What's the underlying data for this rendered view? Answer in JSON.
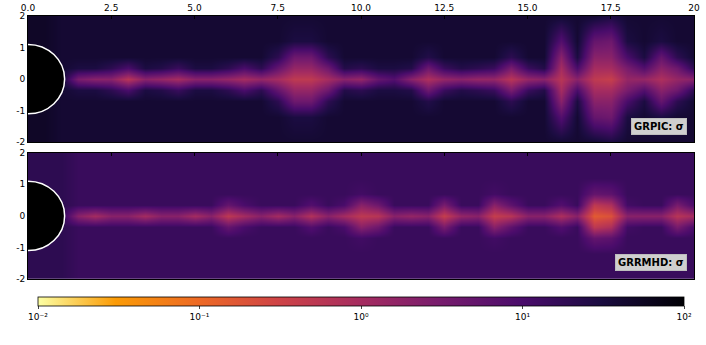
{
  "chart_data": [
    {
      "type": "heatmap",
      "label": "GRPIC: σ",
      "horizon_radius": 1.1,
      "xlim": [
        0,
        20
      ],
      "ylim": [
        -2,
        2
      ],
      "xticks": [
        {
          "value": 0,
          "label": "0.0"
        },
        2.5,
        {
          "value": 5,
          "label": "5.0"
        },
        7.5,
        {
          "value": 10,
          "label": "10.0"
        },
        12.5,
        {
          "value": 15,
          "label": "15.0"
        },
        17.5,
        20
      ],
      "yticks": [
        -2,
        -1,
        0,
        1,
        2
      ],
      "log": true,
      "x": [
        0,
        0.5,
        1,
        1.5,
        2,
        2.5,
        3,
        3.5,
        4,
        4.5,
        5,
        5.5,
        6,
        6.5,
        7,
        7.5,
        8,
        8.5,
        9,
        9.5,
        10,
        10.5,
        11,
        11.5,
        12,
        12.5,
        13,
        13.5,
        14,
        14.5,
        15,
        15.5,
        16,
        16.5,
        17,
        17.5,
        18,
        18.5,
        19,
        19.5,
        20
      ],
      "y": [
        -2,
        -1.2,
        -0.7,
        -0.35,
        0,
        0.35,
        0.7,
        1.2,
        2
      ],
      "cells": [
        [
          50,
          50,
          40,
          40,
          40,
          40,
          40,
          40,
          40,
          40,
          40,
          40,
          40,
          40,
          40,
          40,
          40,
          40,
          40,
          40,
          40,
          40,
          40,
          40,
          40,
          40,
          40,
          40,
          40,
          40,
          40,
          40,
          40,
          40,
          40,
          30,
          40,
          40,
          40,
          40,
          40
        ],
        [
          50,
          50,
          40,
          40,
          40,
          40,
          40,
          40,
          40,
          40,
          40,
          40,
          40,
          40,
          40,
          40,
          30,
          30,
          40,
          40,
          40,
          40,
          40,
          40,
          40,
          40,
          40,
          40,
          40,
          40,
          40,
          40,
          8,
          40,
          5,
          4,
          30,
          40,
          30,
          40,
          40
        ],
        [
          50,
          50,
          40,
          40,
          40,
          40,
          40,
          40,
          40,
          40,
          40,
          40,
          40,
          40,
          40,
          20,
          4,
          4,
          20,
          40,
          40,
          40,
          40,
          40,
          25,
          40,
          40,
          40,
          40,
          20,
          40,
          40,
          2,
          30,
          2,
          2,
          10,
          30,
          5,
          20,
          40
        ],
        [
          50,
          50,
          40,
          30,
          30,
          20,
          10,
          30,
          25,
          15,
          30,
          30,
          20,
          10,
          20,
          5,
          1.5,
          1.5,
          4,
          25,
          20,
          30,
          30,
          25,
          4,
          15,
          25,
          20,
          15,
          3,
          15,
          25,
          1,
          10,
          1,
          1,
          3,
          8,
          2,
          4,
          20
        ],
        [
          50,
          50,
          40,
          3,
          2,
          2,
          0.6,
          2,
          1.5,
          1,
          2,
          2,
          1.5,
          1,
          1.5,
          1,
          0.5,
          0.5,
          1,
          2,
          1.5,
          5,
          8,
          2,
          0.8,
          1.5,
          2,
          1.5,
          1.5,
          0.6,
          1.5,
          2,
          0.6,
          2,
          0.5,
          0.4,
          1.5,
          1.5,
          0.8,
          1.5,
          2
        ],
        [
          50,
          50,
          40,
          30,
          30,
          20,
          10,
          30,
          25,
          15,
          30,
          30,
          20,
          10,
          20,
          5,
          1.5,
          1.5,
          4,
          25,
          20,
          30,
          30,
          25,
          4,
          15,
          25,
          20,
          15,
          3,
          15,
          25,
          1,
          10,
          1,
          1,
          3,
          8,
          2,
          4,
          20
        ],
        [
          50,
          50,
          40,
          40,
          40,
          40,
          40,
          40,
          40,
          40,
          40,
          40,
          40,
          40,
          40,
          20,
          4,
          4,
          20,
          40,
          40,
          40,
          40,
          40,
          25,
          40,
          40,
          40,
          40,
          20,
          40,
          40,
          2,
          30,
          2,
          2,
          10,
          30,
          5,
          20,
          40
        ],
        [
          50,
          50,
          40,
          40,
          40,
          40,
          40,
          40,
          40,
          40,
          40,
          40,
          40,
          40,
          40,
          40,
          30,
          30,
          40,
          40,
          40,
          40,
          40,
          40,
          40,
          40,
          40,
          40,
          40,
          40,
          40,
          40,
          8,
          40,
          5,
          4,
          30,
          40,
          30,
          40,
          40
        ],
        [
          50,
          50,
          40,
          40,
          40,
          40,
          40,
          40,
          40,
          40,
          40,
          40,
          40,
          40,
          40,
          40,
          40,
          40,
          40,
          40,
          40,
          40,
          40,
          40,
          40,
          40,
          40,
          40,
          40,
          40,
          40,
          40,
          40,
          40,
          40,
          30,
          40,
          40,
          40,
          40,
          40
        ]
      ],
      "colorbar": {
        "range": [
          0.01,
          100
        ],
        "ticks": [
          {
            "value": 0.01,
            "label": "10⁻²"
          },
          {
            "value": 0.1,
            "label": "10⁻¹"
          },
          {
            "value": 1,
            "label": "10⁰"
          },
          {
            "value": 10,
            "label": "10¹"
          },
          {
            "value": 100,
            "label": "10²"
          }
        ]
      }
    },
    {
      "type": "heatmap",
      "label": "GRRMHD: σ",
      "horizon_radius": 1.1,
      "xlim": [
        0,
        20
      ],
      "ylim": [
        -2,
        2
      ],
      "xticks": [
        {
          "value": 0,
          "label": "0.0"
        },
        2.5,
        {
          "value": 5,
          "label": "5.0"
        },
        7.5,
        {
          "value": 10,
          "label": "10.0"
        },
        12.5,
        {
          "value": 15,
          "label": "15.0"
        },
        17.5,
        20
      ],
      "yticks": [
        -2,
        -1,
        0,
        1,
        2
      ],
      "tick_labels": "y",
      "log": true,
      "x": [
        0,
        0.5,
        1,
        1.5,
        2,
        2.5,
        3,
        3.5,
        4,
        4.5,
        5,
        5.5,
        6,
        6.5,
        7,
        7.5,
        8,
        8.5,
        9,
        9.5,
        10,
        10.5,
        11,
        11.5,
        12,
        12.5,
        13,
        13.5,
        14,
        14.5,
        15,
        15.5,
        16,
        16.5,
        17,
        17.5,
        18,
        18.5,
        19,
        19.5,
        20
      ],
      "y": [
        -2,
        -1.2,
        -0.7,
        -0.35,
        0,
        0.35,
        0.7,
        1.2,
        2
      ],
      "cells": [
        [
          20,
          20,
          20,
          15,
          15,
          15,
          15,
          15,
          15,
          15,
          15,
          15,
          15,
          15,
          15,
          15,
          15,
          15,
          15,
          15,
          15,
          15,
          15,
          15,
          15,
          15,
          15,
          15,
          15,
          15,
          15,
          15,
          15,
          15,
          15,
          15,
          15,
          15,
          15,
          15,
          15
        ],
        [
          20,
          20,
          20,
          15,
          15,
          15,
          15,
          15,
          15,
          15,
          15,
          15,
          15,
          15,
          15,
          15,
          15,
          15,
          15,
          15,
          15,
          15,
          15,
          15,
          15,
          15,
          15,
          15,
          15,
          15,
          15,
          15,
          15,
          15,
          15,
          15,
          15,
          15,
          15,
          15,
          15
        ],
        [
          20,
          20,
          20,
          15,
          15,
          15,
          15,
          15,
          15,
          15,
          15,
          15,
          15,
          15,
          15,
          15,
          15,
          15,
          15,
          15,
          12,
          15,
          15,
          15,
          15,
          15,
          15,
          15,
          12,
          15,
          15,
          15,
          15,
          15,
          5,
          6,
          15,
          15,
          15,
          15,
          15
        ],
        [
          20,
          20,
          20,
          15,
          15,
          15,
          15,
          15,
          15,
          15,
          15,
          15,
          5,
          10,
          15,
          15,
          15,
          8,
          15,
          10,
          2,
          4,
          15,
          15,
          15,
          3,
          15,
          15,
          2,
          6,
          15,
          15,
          8,
          15,
          0.5,
          0.8,
          12,
          15,
          15,
          3,
          10
        ],
        [
          20,
          20,
          20,
          2,
          1,
          2,
          2,
          1,
          2,
          2,
          1,
          2,
          0.5,
          1,
          2,
          1,
          2,
          0.7,
          2,
          1,
          0.5,
          0.6,
          2,
          1.5,
          2,
          0.4,
          1.5,
          2,
          0.4,
          0.6,
          2,
          2,
          0.8,
          2,
          0.15,
          0.2,
          2,
          2,
          2,
          0.6,
          1
        ],
        [
          20,
          20,
          20,
          15,
          15,
          15,
          15,
          15,
          15,
          15,
          15,
          15,
          5,
          10,
          15,
          15,
          15,
          8,
          15,
          10,
          2,
          4,
          15,
          15,
          15,
          3,
          15,
          15,
          2,
          6,
          15,
          15,
          8,
          15,
          0.5,
          0.8,
          12,
          15,
          15,
          3,
          10
        ],
        [
          20,
          20,
          20,
          15,
          15,
          15,
          15,
          15,
          15,
          15,
          15,
          15,
          15,
          15,
          15,
          15,
          15,
          15,
          15,
          15,
          12,
          15,
          15,
          15,
          15,
          15,
          15,
          15,
          12,
          15,
          15,
          15,
          15,
          15,
          5,
          6,
          15,
          15,
          15,
          15,
          15
        ],
        [
          20,
          20,
          20,
          15,
          15,
          15,
          15,
          15,
          15,
          15,
          15,
          15,
          15,
          15,
          15,
          15,
          15,
          15,
          15,
          15,
          15,
          15,
          15,
          15,
          15,
          15,
          15,
          15,
          15,
          15,
          15,
          15,
          15,
          15,
          15,
          15,
          15,
          15,
          15,
          15,
          15
        ],
        [
          20,
          20,
          20,
          15,
          15,
          15,
          15,
          15,
          15,
          15,
          15,
          15,
          15,
          15,
          15,
          15,
          15,
          15,
          15,
          15,
          15,
          15,
          15,
          15,
          15,
          15,
          15,
          15,
          15,
          15,
          15,
          15,
          15,
          15,
          15,
          15,
          15,
          15,
          15,
          15,
          15
        ]
      ],
      "colorbar": {
        "range": [
          0.01,
          100
        ],
        "ticks": [
          {
            "value": 0.01,
            "label": "10⁻²"
          },
          {
            "value": 0.1,
            "label": "10⁻¹"
          },
          {
            "value": 1,
            "label": "10⁰"
          },
          {
            "value": 10,
            "label": "10¹"
          },
          {
            "value": 100,
            "label": "10²"
          }
        ]
      }
    }
  ]
}
